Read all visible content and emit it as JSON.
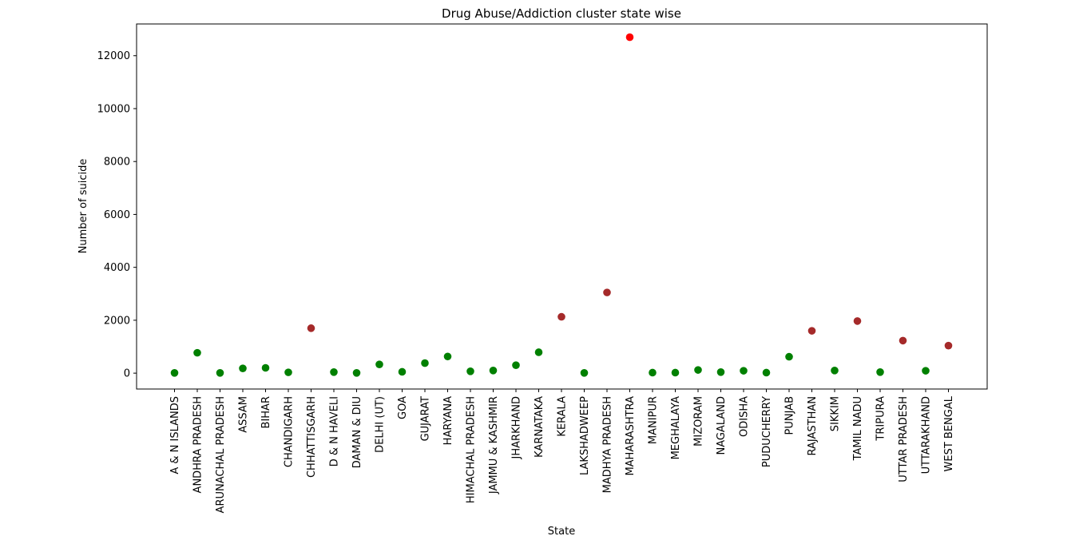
{
  "chart_data": {
    "type": "scatter",
    "title": "Drug Abuse/Addiction cluster state wise",
    "xlabel": "State",
    "ylabel": "Number of suicide",
    "ylim": [
      -600,
      13200
    ],
    "yticks": [
      0,
      2000,
      4000,
      6000,
      8000,
      10000,
      12000
    ],
    "yticklabels": [
      "0",
      "2000",
      "4000",
      "6000",
      "8000",
      "10000",
      "12000"
    ],
    "grid": false,
    "legend": "none",
    "colors": {
      "low": "#008000",
      "mid": "#a52a2a",
      "high": "#ff0000"
    },
    "categories": [
      "A & N ISLANDS",
      "ANDHRA PRADESH",
      "ARUNACHAL PRADESH",
      "ASSAM",
      "BIHAR",
      "CHANDIGARH",
      "CHHATTISGARH",
      "D & N HAVELI",
      "DAMAN & DIU",
      "DELHI (UT)",
      "GOA",
      "GUJARAT",
      "HARYANA",
      "HIMACHAL PRADESH",
      "JAMMU & KASHMIR",
      "JHARKHAND",
      "KARNATAKA",
      "KERALA",
      "LAKSHADWEEP",
      "MADHYA PRADESH",
      "MAHARASHTRA",
      "MANIPUR",
      "MEGHALAYA",
      "MIZORAM",
      "NAGALAND",
      "ODISHA",
      "PUDUCHERRY",
      "PUNJAB",
      "RAJASTHAN",
      "SIKKIM",
      "TAMIL NADU",
      "TRIPURA",
      "UTTAR PRADESH",
      "UTTARAKHAND",
      "WEST BENGAL"
    ],
    "values": [
      10,
      770,
      10,
      180,
      200,
      30,
      1700,
      40,
      10,
      330,
      50,
      380,
      630,
      70,
      100,
      300,
      790,
      2130,
      10,
      3050,
      12700,
      20,
      20,
      120,
      40,
      90,
      20,
      620,
      1600,
      100,
      1970,
      40,
      1230,
      90,
      1040
    ],
    "clusters": [
      "low",
      "low",
      "low",
      "low",
      "low",
      "low",
      "mid",
      "low",
      "low",
      "low",
      "low",
      "low",
      "low",
      "low",
      "low",
      "low",
      "low",
      "mid",
      "low",
      "mid",
      "high",
      "low",
      "low",
      "low",
      "low",
      "low",
      "low",
      "low",
      "mid",
      "low",
      "mid",
      "low",
      "mid",
      "low",
      "mid"
    ]
  }
}
